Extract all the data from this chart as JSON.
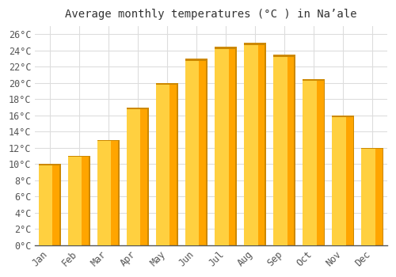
{
  "title": "Average monthly temperatures (°C ) in Naʼale",
  "months": [
    "Jan",
    "Feb",
    "Mar",
    "Apr",
    "May",
    "Jun",
    "Jul",
    "Aug",
    "Sep",
    "Oct",
    "Nov",
    "Dec"
  ],
  "values": [
    10.0,
    11.0,
    13.0,
    17.0,
    20.0,
    23.0,
    24.5,
    25.0,
    23.5,
    20.5,
    16.0,
    12.0
  ],
  "bar_color_main": "#FFA500",
  "bar_color_light": "#FFD040",
  "bar_color_edge": "#CC8800",
  "background_color": "#FFFFFF",
  "grid_color": "#DDDDDD",
  "ytick_labels": [
    "0°C",
    "2°C",
    "4°C",
    "6°C",
    "8°C",
    "10°C",
    "12°C",
    "14°C",
    "16°C",
    "18°C",
    "20°C",
    "22°C",
    "24°C",
    "26°C"
  ],
  "ytick_values": [
    0,
    2,
    4,
    6,
    8,
    10,
    12,
    14,
    16,
    18,
    20,
    22,
    24,
    26
  ],
  "ylim": [
    0,
    27
  ],
  "title_fontsize": 10,
  "tick_fontsize": 8.5,
  "bar_width": 0.75
}
